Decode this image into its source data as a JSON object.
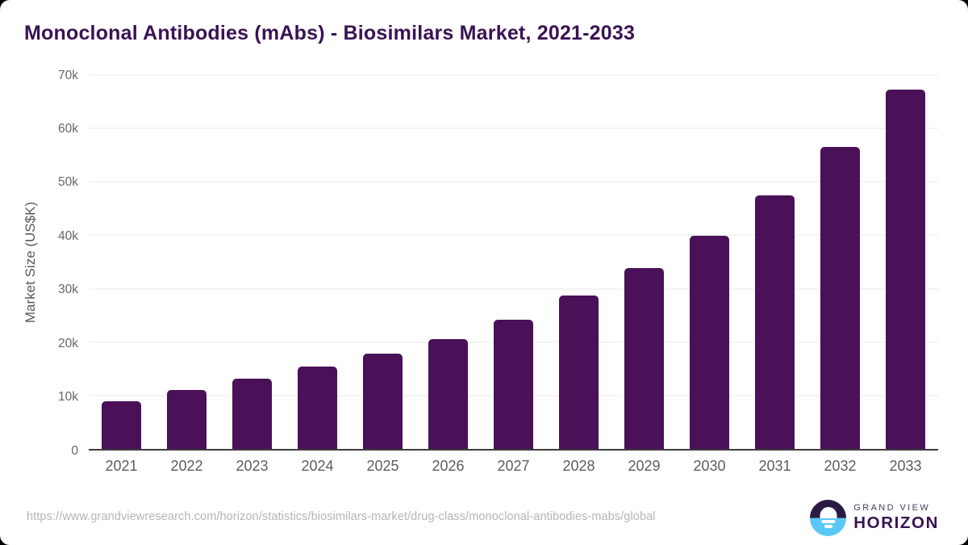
{
  "page": {
    "title": "Monoclonal Antibodies (mAbs) - Biosimilars Market, 2021-2033",
    "footer_url": "https://www.grandviewresearch.com/horizon/statistics/biosimilars-market/drug-class/monoclonal-antibodies-mabs/global",
    "logo": {
      "line1": "GRAND VIEW",
      "line2": "HORIZON"
    }
  },
  "colors": {
    "bar": "#4a1158",
    "title_text": "#3a1253",
    "axis_tick_text": "#666666",
    "gridline": "#e8e8e8",
    "axis_line": "#3c3c3c",
    "footer_text": "#b4b4b4",
    "logo_dark": "#2b1b43",
    "logo_blue": "#5ac8f5"
  },
  "chart_data": {
    "type": "bar",
    "title": "Monoclonal Antibodies (mAbs) - Biosimilars Market, 2021-2033",
    "categories": [
      "2021",
      "2022",
      "2023",
      "2024",
      "2025",
      "2026",
      "2027",
      "2028",
      "2029",
      "2030",
      "2031",
      "2032",
      "2033"
    ],
    "values": [
      8900,
      11100,
      13200,
      15400,
      17800,
      20600,
      24200,
      28800,
      33900,
      39900,
      47400,
      56500,
      67300
    ],
    "xlabel": "",
    "ylabel": "Market Size (US$K)",
    "ylim": [
      0,
      70000
    ],
    "yticks": [
      {
        "value": 0,
        "label": "0"
      },
      {
        "value": 10000,
        "label": "10k"
      },
      {
        "value": 20000,
        "label": "20k"
      },
      {
        "value": 30000,
        "label": "30k"
      },
      {
        "value": 40000,
        "label": "40k"
      },
      {
        "value": 50000,
        "label": "50k"
      },
      {
        "value": 60000,
        "label": "60k"
      },
      {
        "value": 70000,
        "label": "70k"
      }
    ],
    "grid": "horizontal",
    "legend_position": "none",
    "bar_color": "#4a1158"
  }
}
